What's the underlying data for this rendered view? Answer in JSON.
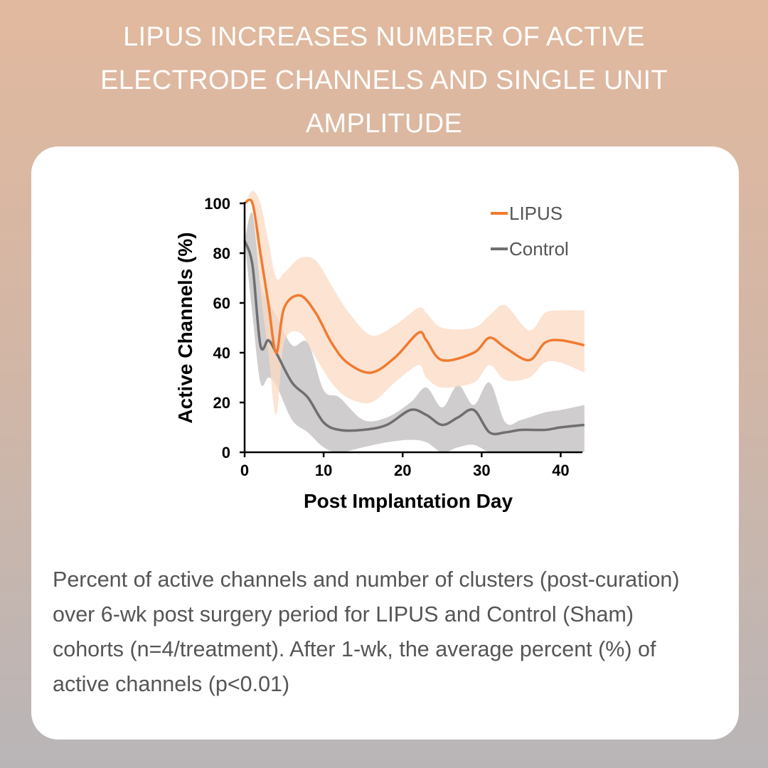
{
  "header": {
    "title_line1": "LIPUS INCREASES NUMBER OF ACTIVE",
    "title_line2": "ELECTRODE CHANNELS AND SINGLE UNIT",
    "title_line3": "AMPLITUDE"
  },
  "caption": "Percent of active channels and number of clusters (post-curation) over 6-wk post surgery period for LIPUS and Control (Sham) cohorts (n=4/treatment). After 1-wk, the average percent (%) of active channels (p<0.01)",
  "colors": {
    "lipus": "#f07b30",
    "lipus_band": "#fbd9c3",
    "control": "#6f6f70",
    "control_band": "#c7c4c5"
  },
  "chart_data": {
    "type": "line",
    "title": "",
    "xlabel": "Post Implantation Day",
    "ylabel": "Active Channels (%)",
    "xlim": [
      0,
      45
    ],
    "ylim": [
      0,
      100
    ],
    "xticks": [
      0,
      10,
      20,
      30,
      40
    ],
    "yticks": [
      0,
      20,
      40,
      60,
      80,
      100
    ],
    "legend": [
      "LIPUS",
      "Control"
    ],
    "series": [
      {
        "name": "LIPUS",
        "x": [
          0,
          1,
          2,
          3,
          4,
          5,
          7,
          9,
          11,
          13,
          16,
          19,
          22,
          23,
          25,
          29,
          31,
          33,
          36,
          38,
          40,
          43
        ],
        "y": [
          100,
          100,
          80,
          60,
          40,
          58,
          63,
          56,
          44,
          36,
          32,
          38,
          48,
          45,
          37,
          40,
          46,
          42,
          37,
          44,
          45,
          43
        ],
        "upper": [
          100,
          105,
          100,
          85,
          70,
          72,
          78,
          77,
          67,
          57,
          47,
          51,
          58,
          56,
          50,
          50,
          55,
          59,
          49,
          56,
          57,
          57
        ],
        "lower": [
          100,
          100,
          65,
          40,
          15,
          44,
          48,
          38,
          28,
          22,
          20,
          28,
          35,
          30,
          26,
          28,
          35,
          29,
          30,
          36,
          36,
          32
        ]
      },
      {
        "name": "Control",
        "x": [
          0,
          1,
          2,
          3,
          4,
          6,
          8,
          10,
          12,
          15,
          18,
          21,
          23,
          25,
          27,
          29,
          31,
          33,
          35,
          38,
          40,
          43
        ],
        "y": [
          85,
          75,
          43,
          45,
          40,
          28,
          22,
          12,
          9,
          9,
          11,
          17,
          15,
          11,
          14,
          17,
          8,
          8,
          9,
          9,
          10,
          11
        ],
        "upper": [
          85,
          96,
          68,
          61,
          55,
          43,
          44,
          25,
          22,
          13,
          14,
          20,
          26,
          18,
          27,
          19,
          28,
          12,
          13,
          16,
          17,
          19
        ],
        "lower": [
          85,
          55,
          28,
          30,
          27,
          13,
          8,
          2,
          0,
          2,
          4,
          5,
          4,
          0,
          2,
          3,
          0,
          0,
          0,
          0,
          0,
          0
        ]
      }
    ]
  }
}
